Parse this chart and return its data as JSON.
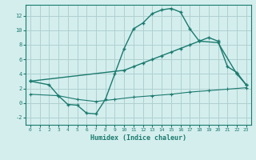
{
  "line1_x": [
    0,
    2,
    3,
    4,
    5,
    6,
    7,
    8,
    9,
    10,
    11,
    12,
    13,
    14,
    15,
    16,
    17,
    18,
    20,
    22,
    23
  ],
  "line1_y": [
    3.0,
    2.5,
    1.0,
    -0.2,
    -0.3,
    -1.4,
    -1.5,
    0.5,
    4.0,
    7.5,
    10.2,
    11.0,
    12.3,
    12.8,
    13.0,
    12.5,
    10.2,
    8.5,
    8.3,
    4.0,
    2.5
  ],
  "line2_x": [
    0,
    10,
    11,
    12,
    13,
    14,
    15,
    16,
    17,
    18,
    19,
    20,
    21,
    22,
    23
  ],
  "line2_y": [
    3.0,
    4.5,
    5.0,
    5.5,
    6.0,
    6.5,
    7.0,
    7.5,
    8.0,
    8.5,
    9.0,
    8.5,
    5.0,
    4.2,
    2.5
  ],
  "line3_x": [
    0,
    3,
    5,
    7,
    9,
    11,
    13,
    15,
    17,
    19,
    21,
    23
  ],
  "line3_y": [
    1.2,
    1.0,
    0.5,
    0.2,
    0.5,
    0.8,
    1.0,
    1.2,
    1.5,
    1.7,
    1.9,
    2.1
  ],
  "color": "#1a7a6e",
  "bg_color": "#d4eeee",
  "grid_color": "#b0d0d0",
  "xlabel": "Humidex (Indice chaleur)",
  "ylim": [
    -3.0,
    13.5
  ],
  "xlim": [
    -0.5,
    23.5
  ],
  "yticks": [
    -2,
    0,
    2,
    4,
    6,
    8,
    10,
    12
  ],
  "xticks": [
    0,
    1,
    2,
    3,
    4,
    5,
    6,
    7,
    8,
    9,
    10,
    11,
    12,
    13,
    14,
    15,
    16,
    17,
    18,
    19,
    20,
    21,
    22,
    23
  ]
}
